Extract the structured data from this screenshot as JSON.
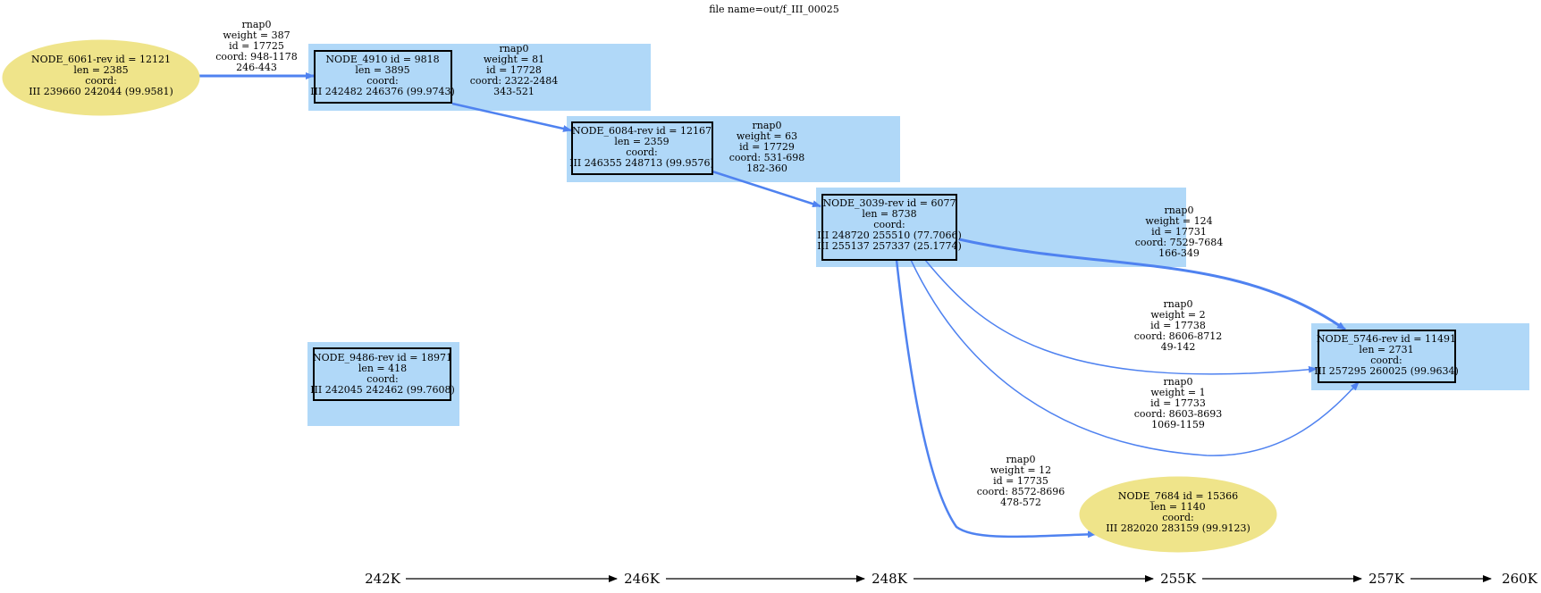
{
  "title": "file name=out/f_III_00025",
  "nodes": [
    {
      "id": "n6061",
      "shape": "ellipse",
      "lines": [
        "NODE_6061-rev id = 12121",
        "len = 2385",
        "coord:",
        "III 239660 242044 (99.9581)"
      ]
    },
    {
      "id": "n4910",
      "shape": "box",
      "lines": [
        "NODE_4910 id = 9818",
        "len = 3895",
        "coord:",
        "III 242482 246376 (99.9743)"
      ]
    },
    {
      "id": "n6084",
      "shape": "box",
      "lines": [
        "NODE_6084-rev id = 12167",
        "len = 2359",
        "coord:",
        "III 246355 248713 (99.9576)"
      ]
    },
    {
      "id": "n3039",
      "shape": "box",
      "lines": [
        "NODE_3039-rev id = 6077",
        "len = 8738",
        "coord:",
        "III 248720 255510 (77.7066)",
        "III 255137 257337 (25.1774)"
      ]
    },
    {
      "id": "n9486",
      "shape": "box",
      "lines": [
        "NODE_9486-rev id = 18971",
        "len = 418",
        "coord:",
        "III 242045 242462 (99.7608)"
      ]
    },
    {
      "id": "n5746",
      "shape": "box",
      "lines": [
        "NODE_5746-rev id = 11491",
        "len = 2731",
        "coord:",
        "III 257295 260025 (99.9634)"
      ]
    },
    {
      "id": "n7684",
      "shape": "ellipse",
      "lines": [
        "NODE_7684 id = 15366",
        "len = 1140",
        "coord:",
        "III 282020 283159 (99.9123)"
      ]
    }
  ],
  "edges": [
    {
      "from": "n6061",
      "to": "n4910",
      "lines": [
        "rnap0",
        "weight = 387",
        "id = 17725",
        "coord: 948-1178",
        "246-443"
      ]
    },
    {
      "from": "n4910",
      "to": "n6084",
      "lines": [
        "rnap0",
        "weight = 81",
        "id = 17728",
        "coord: 2322-2484",
        "343-521"
      ]
    },
    {
      "from": "n6084",
      "to": "n3039",
      "lines": [
        "rnap0",
        "weight = 63",
        "id = 17729",
        "coord: 531-698",
        "182-360"
      ]
    },
    {
      "from": "n3039",
      "to": "n5746",
      "lines": [
        "rnap0",
        "weight = 124",
        "id = 17731",
        "coord: 7529-7684",
        "166-349"
      ]
    },
    {
      "from": "n3039",
      "to": "n5746",
      "lines": [
        "rnap0",
        "weight = 2",
        "id = 17738",
        "coord: 8606-8712",
        "49-142"
      ]
    },
    {
      "from": "n3039",
      "to": "n5746",
      "lines": [
        "rnap0",
        "weight = 1",
        "id = 17733",
        "coord: 8603-8693",
        "1069-1159"
      ]
    },
    {
      "from": "n3039",
      "to": "n7684",
      "lines": [
        "rnap0",
        "weight = 12",
        "id = 17735",
        "coord: 8572-8696",
        "478-572"
      ]
    }
  ],
  "axis": [
    "242K",
    "246K",
    "248K",
    "255K",
    "257K",
    "260K"
  ],
  "colors": {
    "edge": "#4f82f0",
    "highlight": "#b0d8f8",
    "ellipse": "#efe48a",
    "node_border": "#000000"
  }
}
